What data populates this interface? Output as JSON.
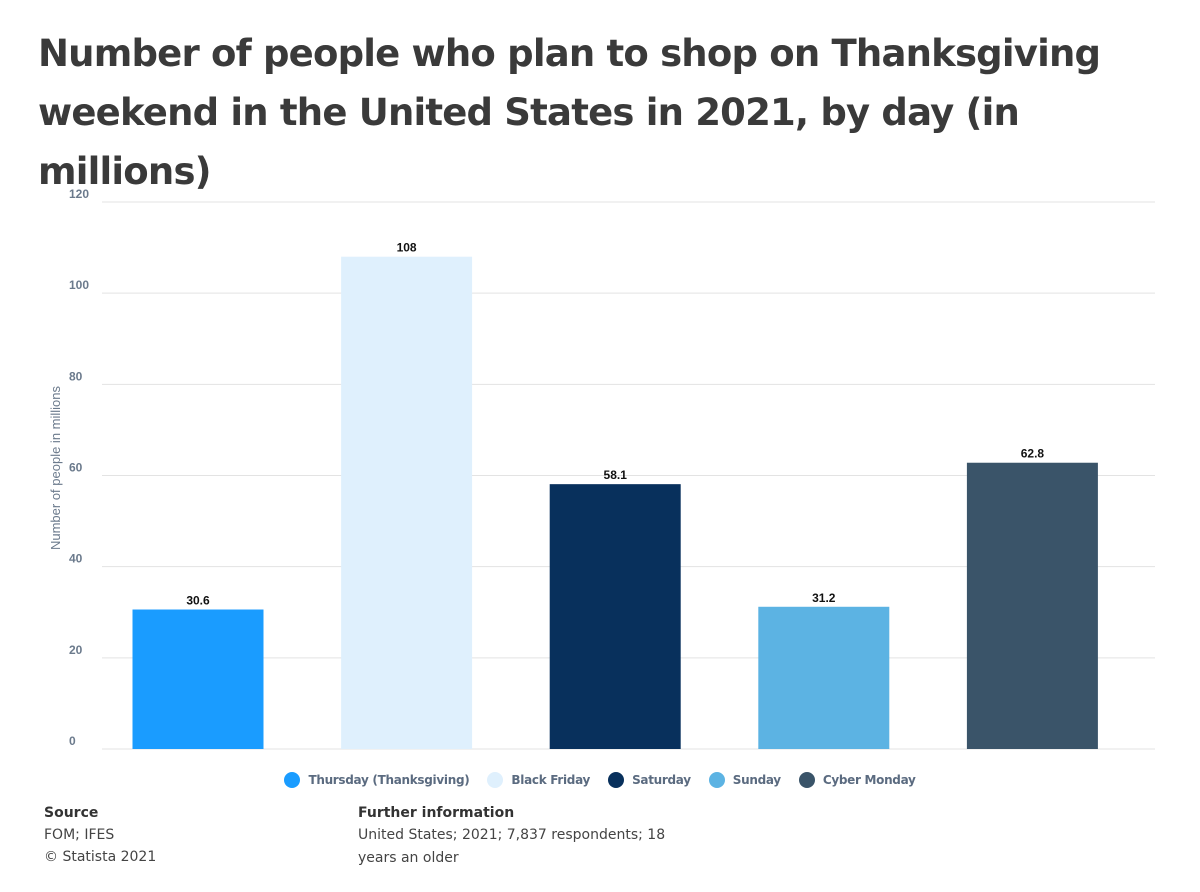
{
  "title": "Number of people who plan to shop on Thanksgiving weekend in the United States in 2021, by day (in millions)",
  "chart_data": {
    "type": "bar",
    "ylabel": "Number of people in millions",
    "ylim": [
      0,
      120
    ],
    "yticks": [
      "0",
      "20",
      "40",
      "60",
      "80",
      "100",
      "120"
    ],
    "grid": true,
    "categories": [
      "Thursday (Thanksgiving)",
      "Black Friday",
      "Saturday",
      "Sunday",
      "Cyber Monday"
    ],
    "values": [
      30.6,
      108,
      58.1,
      31.2,
      62.8
    ],
    "value_labels": [
      "30.6",
      "108",
      "58.1",
      "31.2",
      "62.8"
    ],
    "colors": [
      "#1a9cff",
      "#dff0fd",
      "#08305c",
      "#5cb3e3",
      "#3a5469"
    ],
    "legend_position": "bottom-center"
  },
  "legend": [
    {
      "label": "Thursday (Thanksgiving)",
      "color": "#1a9cff"
    },
    {
      "label": "Black Friday",
      "color": "#dff0fd"
    },
    {
      "label": "Saturday",
      "color": "#08305c"
    },
    {
      "label": "Sunday",
      "color": "#5cb3e3"
    },
    {
      "label": "Cyber Monday",
      "color": "#3a5469"
    }
  ],
  "footer": {
    "source_heading": "Source",
    "source_text": "FOM; IFES",
    "copyright": "© Statista 2021",
    "info_heading": "Further information",
    "info_text": "United States; 2021; 7,837 respondents; 18 years an older"
  }
}
